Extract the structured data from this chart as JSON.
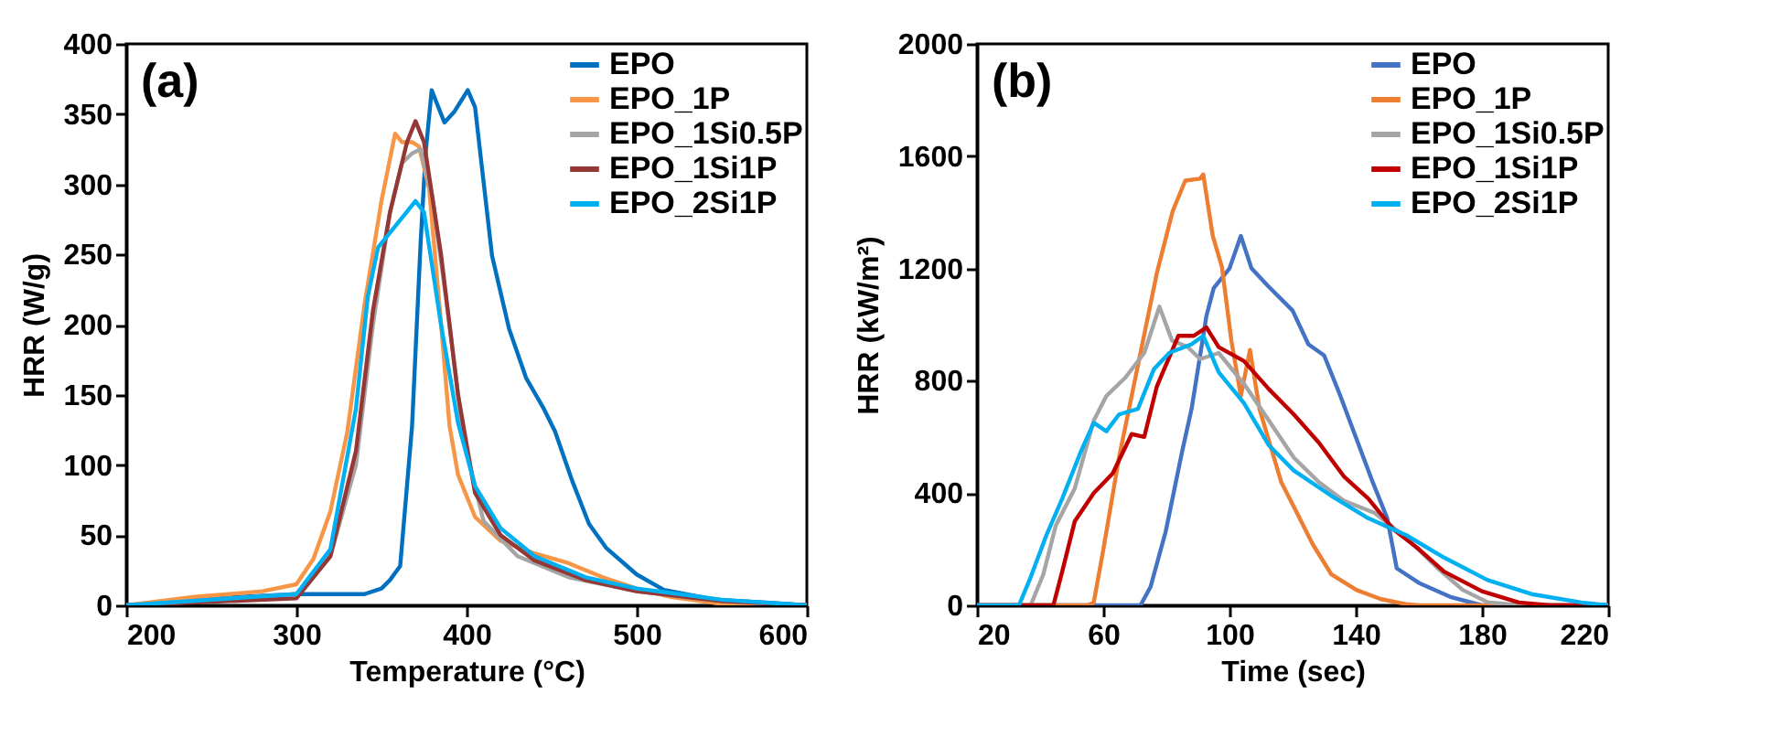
{
  "chart_data": [
    {
      "type": "line",
      "xlabel": "Temperature (°C)",
      "ylabel": "HRR (W/g)",
      "annotations": [
        "(a)"
      ],
      "xlim": [
        200,
        600
      ],
      "ylim": [
        0,
        400
      ],
      "xticks": [
        200,
        300,
        400,
        500,
        600
      ],
      "yticks": [
        0,
        50,
        100,
        150,
        200,
        250,
        300,
        350,
        400
      ],
      "legend": "top right",
      "series": [
        {
          "name": "EPO",
          "color": "#0070c0",
          "x": [
            200,
            250,
            300,
            340,
            350,
            355,
            361,
            368,
            373,
            376,
            379.5,
            387,
            393,
            400.7,
            405,
            408,
            415,
            425,
            435,
            445,
            452,
            462,
            472,
            482,
            500,
            516,
            546,
            576,
            600
          ],
          "values": [
            0,
            5,
            8,
            8,
            12,
            18,
            28,
            128,
            258,
            323,
            367,
            344,
            352,
            367,
            355,
            323,
            249,
            197,
            162,
            141,
            124,
            89,
            58,
            41,
            22,
            11,
            4,
            2,
            0
          ]
        },
        {
          "name": "EPO_1P",
          "color": "#f79646",
          "x": [
            200,
            240,
            280,
            300,
            310,
            320,
            330,
            340,
            350,
            358,
            362,
            368,
            372,
            378,
            385,
            390,
            395,
            405,
            420,
            440,
            460,
            480,
            500,
            520,
            550,
            600
          ],
          "values": [
            0,
            6,
            10,
            15,
            33,
            67,
            124,
            214,
            288,
            336,
            330,
            330,
            327,
            297,
            201,
            128,
            93,
            63,
            46,
            37,
            30,
            20,
            12,
            6,
            1,
            0
          ]
        },
        {
          "name": "EPO_1Si0.5P",
          "color": "#a5a5a5",
          "x": [
            200,
            300,
            320,
            335,
            345,
            355,
            362,
            368,
            373,
            380,
            390,
            398,
            410,
            430,
            460,
            500,
            550,
            600
          ],
          "values": [
            0,
            8,
            35,
            100,
            200,
            280,
            315,
            322,
            325,
            290,
            200,
            120,
            60,
            35,
            20,
            10,
            3,
            0
          ]
        },
        {
          "name": "EPO_1Si1P",
          "color": "#953735",
          "x": [
            200,
            300,
            320,
            335,
            345,
            355,
            365,
            370,
            375,
            385,
            395,
            405,
            420,
            440,
            470,
            500,
            550,
            600
          ],
          "values": [
            0,
            5,
            35,
            110,
            210,
            280,
            330,
            345,
            330,
            250,
            150,
            80,
            50,
            32,
            18,
            10,
            3,
            0
          ]
        },
        {
          "name": "EPO_2Si1P",
          "color": "#00b0f0",
          "x": [
            200,
            300,
            320,
            335,
            342,
            348,
            358,
            366,
            370,
            375,
            385,
            395,
            405,
            420,
            440,
            470,
            500,
            550,
            600
          ],
          "values": [
            0,
            8,
            40,
            140,
            220,
            255,
            270,
            282,
            288,
            280,
            200,
            130,
            85,
            55,
            35,
            20,
            12,
            4,
            0
          ]
        }
      ]
    },
    {
      "type": "line",
      "xlabel": "Time (sec)",
      "ylabel": "HRR (kW/m²)",
      "annotations": [
        "(b)"
      ],
      "xlim": [
        20,
        220
      ],
      "ylim": [
        0,
        2000
      ],
      "xticks": [
        20,
        60,
        100,
        140,
        180,
        220
      ],
      "yticks": [
        0,
        400,
        800,
        1200,
        1600,
        2000
      ],
      "legend": "top right",
      "series": [
        {
          "name": "EPO",
          "color": "#4472c4",
          "x": [
            20,
            71.8,
            75,
            79.8,
            85,
            88,
            92.7,
            95,
            100,
            103.6,
            107,
            112,
            120,
            125,
            130,
            135,
            140,
            145,
            150,
            153,
            160,
            170,
            180,
            220
          ],
          "values": [
            0,
            0,
            66,
            263,
            548,
            700,
            1031,
            1130,
            1200,
            1316,
            1200,
            1140,
            1050,
            930,
            890,
            750,
            600,
            450,
            310,
            132,
            80,
            30,
            0,
            0
          ]
        },
        {
          "name": "EPO_1P",
          "color": "#ed7d31",
          "x": [
            20,
            55,
            57,
            60,
            65,
            71,
            77,
            82,
            86,
            90.7,
            91.7,
            94.7,
            97.6,
            100.6,
            103.6,
            106.5,
            109.5,
            116.4,
            121.4,
            126.3,
            132.3,
            140.2,
            148,
            156,
            160,
            220
          ],
          "values": [
            0,
            0,
            10,
            197,
            526,
            855,
            1184,
            1404,
            1513,
            1520,
            1535,
            1316,
            1206,
            943,
            746,
            910,
            700,
            439,
            329,
            219,
            110,
            55,
            22,
            4,
            0,
            0
          ]
        },
        {
          "name": "EPO_1Si0.5P",
          "color": "#a5a5a5",
          "x": [
            20,
            37,
            41,
            45,
            51,
            57,
            61,
            67,
            73,
            77.8,
            81.8,
            86.7,
            90.7,
            96.6,
            104.6,
            112.5,
            120.4,
            128.3,
            136.2,
            146,
            156,
            166,
            173.9,
            181.8,
            191.7,
            220
          ],
          "values": [
            0,
            0,
            110,
            285,
            417,
            658,
            746,
            811,
            899,
            1064,
            943,
            921,
            877,
            899,
            789,
            658,
            526,
            439,
            373,
            329,
            241,
            132,
            55,
            11,
            0,
            0
          ]
        },
        {
          "name": "EPO_1Si1P",
          "color": "#c00000",
          "x": [
            20,
            44.2,
            47,
            51,
            57,
            63,
            69,
            73,
            77,
            83.8,
            88.7,
            92.7,
            96.6,
            104.6,
            112.5,
            120.4,
            128.3,
            136.2,
            144,
            152,
            160,
            168,
            180,
            191.7,
            201.6,
            220
          ],
          "values": [
            0,
            0,
            120,
            300,
            400,
            470,
            610,
            600,
            780,
            960,
            960,
            990,
            920,
            870,
            770,
            680,
            580,
            460,
            380,
            270,
            200,
            120,
            50,
            10,
            0,
            0
          ]
        },
        {
          "name": "EPO_2Si1P",
          "color": "#00b0f0",
          "x": [
            20,
            33.3,
            37,
            42,
            47,
            53,
            57,
            61,
            65,
            71,
            76,
            81,
            88,
            91.7,
            96.6,
            104.6,
            112.5,
            120.4,
            132.3,
            144,
            156,
            168,
            181.8,
            195.7,
            211.5,
            220
          ],
          "values": [
            0,
            0,
            100,
            250,
            380,
            550,
            650,
            620,
            680,
            700,
            840,
            900,
            930,
            960,
            830,
            720,
            570,
            480,
            390,
            310,
            250,
            170,
            90,
            40,
            10,
            0
          ]
        }
      ]
    }
  ]
}
